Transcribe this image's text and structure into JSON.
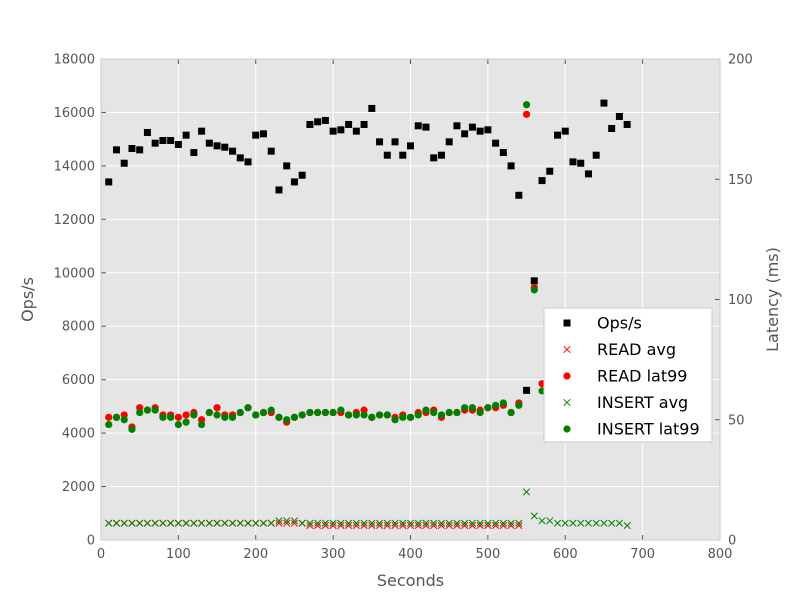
{
  "chart_data": {
    "type": "scatter",
    "xlabel": "Seconds",
    "ylabel_left": "Ops/s",
    "ylabel_right": "Latency (ms)",
    "xlim": [
      0,
      800
    ],
    "ylim_left": [
      0,
      18000
    ],
    "ylim_right": [
      0,
      200
    ],
    "x_ticks": [
      "0",
      "100",
      "200",
      "300",
      "400",
      "500",
      "600",
      "700",
      "800"
    ],
    "y_left_ticks": [
      "0",
      "2000",
      "4000",
      "6000",
      "8000",
      "10000",
      "12000",
      "14000",
      "16000",
      "18000"
    ],
    "y_right_ticks": [
      "0",
      "50",
      "100",
      "150",
      "200"
    ],
    "grid": true,
    "legend_position": "center-right",
    "x": [
      10,
      20,
      30,
      40,
      50,
      60,
      70,
      80,
      90,
      100,
      110,
      120,
      130,
      140,
      150,
      160,
      170,
      180,
      190,
      200,
      210,
      220,
      230,
      240,
      250,
      260,
      270,
      280,
      290,
      300,
      310,
      320,
      330,
      340,
      350,
      360,
      370,
      380,
      390,
      400,
      410,
      420,
      430,
      440,
      450,
      460,
      470,
      480,
      490,
      500,
      510,
      520,
      530,
      540,
      550,
      560,
      570,
      580,
      590,
      600,
      610,
      620,
      630,
      640,
      650,
      660,
      670,
      680
    ],
    "series": [
      {
        "name": "Ops/s",
        "axis": "left",
        "marker": "square",
        "color": "#000000",
        "values": [
          13400,
          14600,
          14100,
          14650,
          14600,
          15250,
          14850,
          14950,
          14950,
          14800,
          15150,
          14500,
          15300,
          14850,
          14750,
          14700,
          14550,
          14300,
          14150,
          15150,
          15200,
          14550,
          13100,
          14000,
          13400,
          13650,
          15550,
          15650,
          15700,
          15300,
          15350,
          15550,
          15300,
          15550,
          16150,
          14900,
          14400,
          14900,
          14400,
          14750,
          15500,
          15450,
          14300,
          14400,
          14900,
          15500,
          15200,
          15450,
          15300,
          15350,
          14850,
          14500,
          14000,
          12900,
          5600,
          9700,
          13450,
          13800,
          15150,
          15300,
          14150,
          14100,
          13700,
          14400,
          16350,
          15400,
          15850,
          15550
        ]
      },
      {
        "name": "READ avg",
        "axis": "right",
        "marker": "x",
        "color": "#ff0000",
        "values": [
          7,
          7,
          7,
          7,
          7,
          7,
          7,
          7,
          7,
          7,
          7,
          7,
          7,
          7,
          7,
          7,
          7,
          7,
          7,
          7,
          7,
          7,
          7,
          7,
          7,
          7,
          6,
          6,
          6,
          6,
          6,
          6,
          6,
          6,
          6,
          6,
          6,
          6,
          6,
          6,
          6,
          6,
          6,
          6,
          6,
          6,
          6,
          6,
          6,
          6,
          6,
          6,
          6,
          6,
          null,
          null,
          null,
          null,
          null,
          null,
          null,
          null,
          null,
          null,
          null,
          null,
          null,
          null
        ]
      },
      {
        "name": "READ lat99",
        "axis": "right",
        "marker": "circle",
        "color": "#ff0000",
        "values": [
          51,
          51,
          52,
          47,
          55,
          54,
          55,
          52,
          52,
          51,
          52,
          53,
          50,
          53,
          55,
          52,
          52,
          53,
          55,
          52,
          53,
          53,
          51,
          49,
          51,
          52,
          53,
          53,
          53,
          53,
          53,
          52,
          53,
          54,
          51,
          52,
          52,
          51,
          52,
          51,
          53,
          53,
          54,
          51,
          53,
          53,
          54,
          54,
          54,
          55,
          55,
          56,
          53,
          57,
          177,
          105,
          65,
          null,
          null,
          null,
          null,
          null,
          null,
          null,
          null,
          null,
          null,
          null
        ]
      },
      {
        "name": "INSERT avg",
        "axis": "right",
        "marker": "x",
        "color": "#008000",
        "values": [
          7,
          7,
          7,
          7,
          7,
          7,
          7,
          7,
          7,
          7,
          7,
          7,
          7,
          7,
          7,
          7,
          7,
          7,
          7,
          7,
          7,
          7,
          8,
          8,
          8,
          7,
          7,
          7,
          7,
          7,
          7,
          7,
          7,
          7,
          7,
          7,
          7,
          7,
          7,
          7,
          7,
          7,
          7,
          7,
          7,
          7,
          7,
          7,
          7,
          7,
          7,
          7,
          7,
          7,
          20,
          10,
          8,
          8,
          7,
          7,
          7,
          7,
          7,
          7,
          7,
          7,
          7,
          6
        ]
      },
      {
        "name": "INSERT lat99",
        "axis": "right",
        "marker": "circle",
        "color": "#008000",
        "values": [
          48,
          51,
          50,
          46,
          53,
          54,
          54,
          51,
          51,
          48,
          49,
          52,
          48,
          53,
          52,
          51,
          51,
          53,
          55,
          52,
          53,
          54,
          51,
          50,
          51,
          52,
          53,
          53,
          53,
          53,
          54,
          52,
          52,
          52,
          51,
          52,
          52,
          50,
          51,
          51,
          52,
          54,
          53,
          52,
          53,
          53,
          55,
          55,
          53,
          55,
          56,
          57,
          53,
          56,
          181,
          104,
          62,
          null,
          null,
          null,
          null,
          null,
          null,
          null,
          null,
          null,
          null,
          null
        ]
      }
    ]
  }
}
